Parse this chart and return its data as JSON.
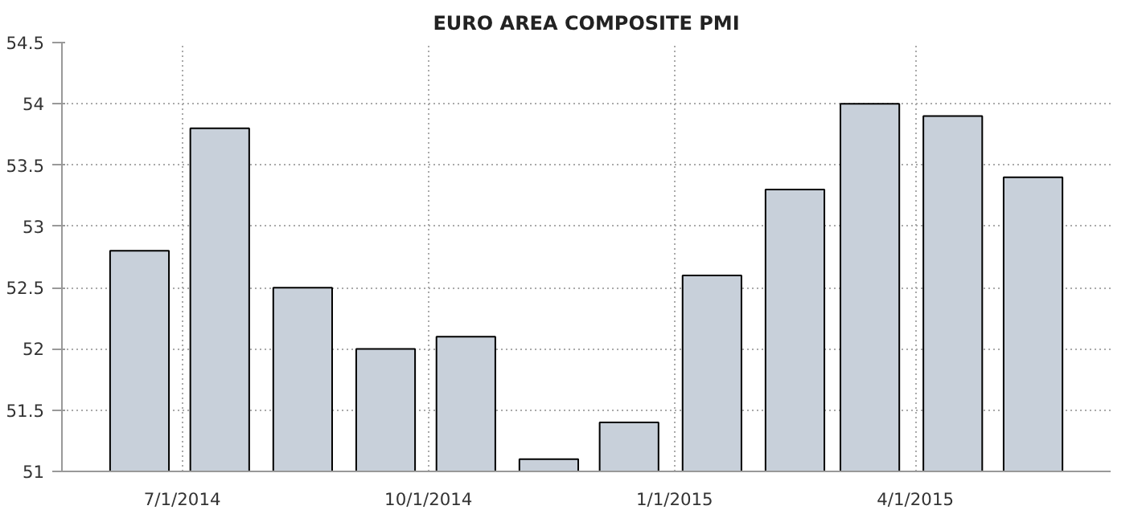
{
  "chart_data": {
    "type": "bar",
    "title": "EURO AREA COMPOSITE PMI",
    "x": [
      "2014-06-15",
      "2014-07-15",
      "2014-08-15",
      "2014-09-15",
      "2014-10-15",
      "2014-11-15",
      "2014-12-15",
      "2015-01-15",
      "2015-02-15",
      "2015-03-15",
      "2015-04-15",
      "2015-05-15"
    ],
    "values": [
      52.8,
      53.8,
      52.5,
      52.0,
      52.1,
      51.1,
      51.4,
      52.6,
      53.3,
      54.0,
      53.9,
      53.4
    ],
    "color": "#c8d0da",
    "xlim": [
      "2014-05-17",
      "2015-06-13"
    ],
    "xticks": [
      {
        "value": "2014-07-01",
        "label": "7/1/2014"
      },
      {
        "value": "2014-10-01",
        "label": "10/1/2014"
      },
      {
        "value": "2015-01-01",
        "label": "1/1/2015"
      },
      {
        "value": "2015-04-01",
        "label": "4/1/2015"
      }
    ],
    "ylim": [
      51,
      54.5
    ],
    "yticks": [
      51,
      51.5,
      52,
      52.5,
      53,
      53.5,
      54,
      54.5
    ],
    "grid": true
  }
}
